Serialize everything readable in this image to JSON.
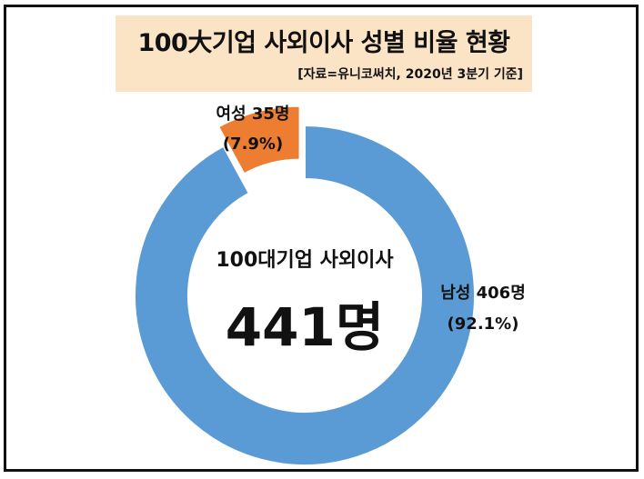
{
  "header": {
    "title": "100大기업 사외이사 성별 비율 현황",
    "source": "[자료=유니코써치, 2020년 3분기 기준]"
  },
  "center": {
    "label": "100대기업 사외이사",
    "total": "441명"
  },
  "chart_data": {
    "type": "pie",
    "subtype": "donut",
    "title": "100大기업 사외이사 성별 비율 현황",
    "total": 441,
    "slices": [
      {
        "name": "남성",
        "count": 406,
        "percent": 92.1,
        "label": "남성 406명",
        "pct_label": "(92.1%)",
        "color": "#5b9bd5",
        "exploded": false
      },
      {
        "name": "여성",
        "count": 35,
        "percent": 7.9,
        "label": "여성 35명",
        "pct_label": "(7.9%)",
        "color": "#ed7d31",
        "exploded": true
      }
    ]
  }
}
